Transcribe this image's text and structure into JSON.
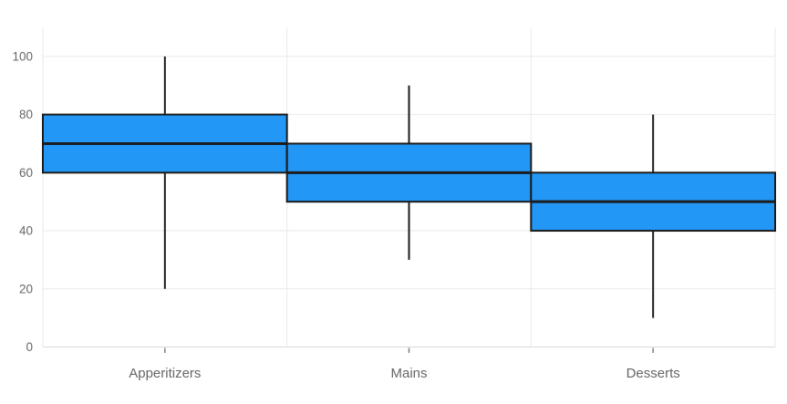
{
  "chart_data": {
    "type": "boxplot",
    "title": "",
    "categories": [
      "Apperitizers",
      "Mains",
      "Desserts"
    ],
    "series": [
      {
        "name": "Apperitizers",
        "min": 20,
        "q1": 60,
        "median": 70,
        "q3": 80,
        "max": 100
      },
      {
        "name": "Mains",
        "min": 30,
        "q1": 50,
        "median": 60,
        "q3": 70,
        "max": 90
      },
      {
        "name": "Desserts",
        "min": 10,
        "q1": 40,
        "median": 50,
        "q3": 60,
        "max": 80
      }
    ],
    "y_axis": {
      "ticks": [
        0,
        20,
        40,
        60,
        80,
        100
      ],
      "range": [
        0,
        110
      ]
    },
    "x_axis": {
      "labels": [
        "Apperitizers",
        "Mains",
        "Desserts"
      ]
    },
    "legend": false,
    "grid": true,
    "layout_hints": {
      "box_width": "full-category",
      "whisker_caps": false,
      "gridlines": "horizontal-and-category-boundaries"
    },
    "colors": {
      "box_fill": "#2397F5",
      "box_stroke": "#1c1c1c",
      "median_stroke": "#1c1c1c",
      "whisker_stroke": "#1c1c1c",
      "gridline": "#e9e9e9",
      "axis_line": "#d9d9d9",
      "tick_mark": "#7f7f7f",
      "label_color": "#666666",
      "background": "#ffffff"
    }
  }
}
